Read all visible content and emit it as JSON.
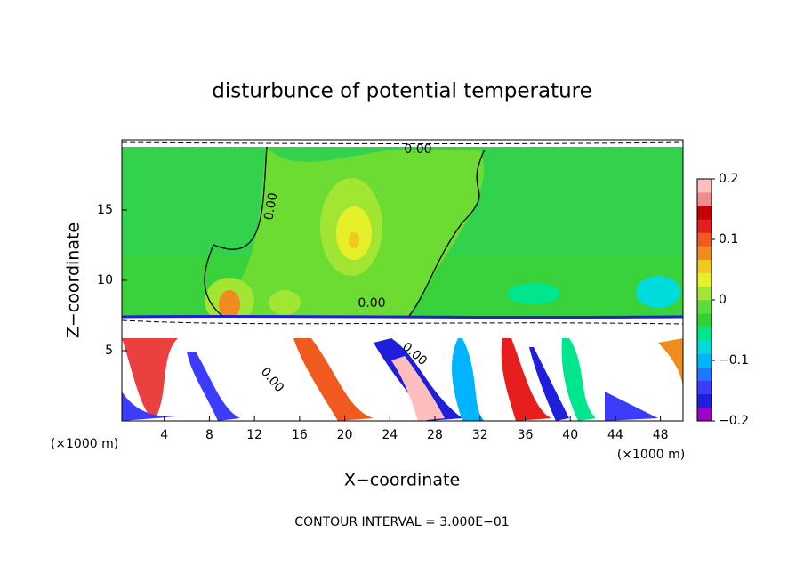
{
  "chart_data": {
    "type": "contour",
    "title": "disturbunce of potential temperature",
    "x_label": "X−coordinate",
    "y_label": "Z−coordinate",
    "x_unit_left": "(×1000 m)",
    "x_unit_right": "(×1000 m)",
    "footer": "CONTOUR INTERVAL = 3.000E−01",
    "xlim": [
      0,
      50
    ],
    "xticks": [
      4,
      8,
      12,
      16,
      20,
      24,
      28,
      32,
      36,
      40,
      44,
      48
    ],
    "ylim": [
      0,
      20
    ],
    "yticks": [
      5,
      10,
      15
    ],
    "contour_labels": [
      "0.00",
      "0.00",
      "0.00",
      "0.00",
      "0.00"
    ],
    "colorbar": {
      "lim": [
        -0.2,
        0.2
      ],
      "ticks": [
        {
          "value": -0.2,
          "label": "−0.2"
        },
        {
          "value": -0.1,
          "label": "−0.1"
        },
        0,
        0.1,
        0.2
      ],
      "colors": [
        "#a000c8",
        "#1e1edc",
        "#3c3cff",
        "#1e78ff",
        "#00b4ff",
        "#00dcdc",
        "#00e68c",
        "#32d232",
        "#5ade3c",
        "#a0e632",
        "#e6f028",
        "#f0c81e",
        "#f08c1e",
        "#f05a1e",
        "#e61e1e",
        "#c80000",
        "#f08c8c",
        "#ffbebe"
      ]
    }
  }
}
